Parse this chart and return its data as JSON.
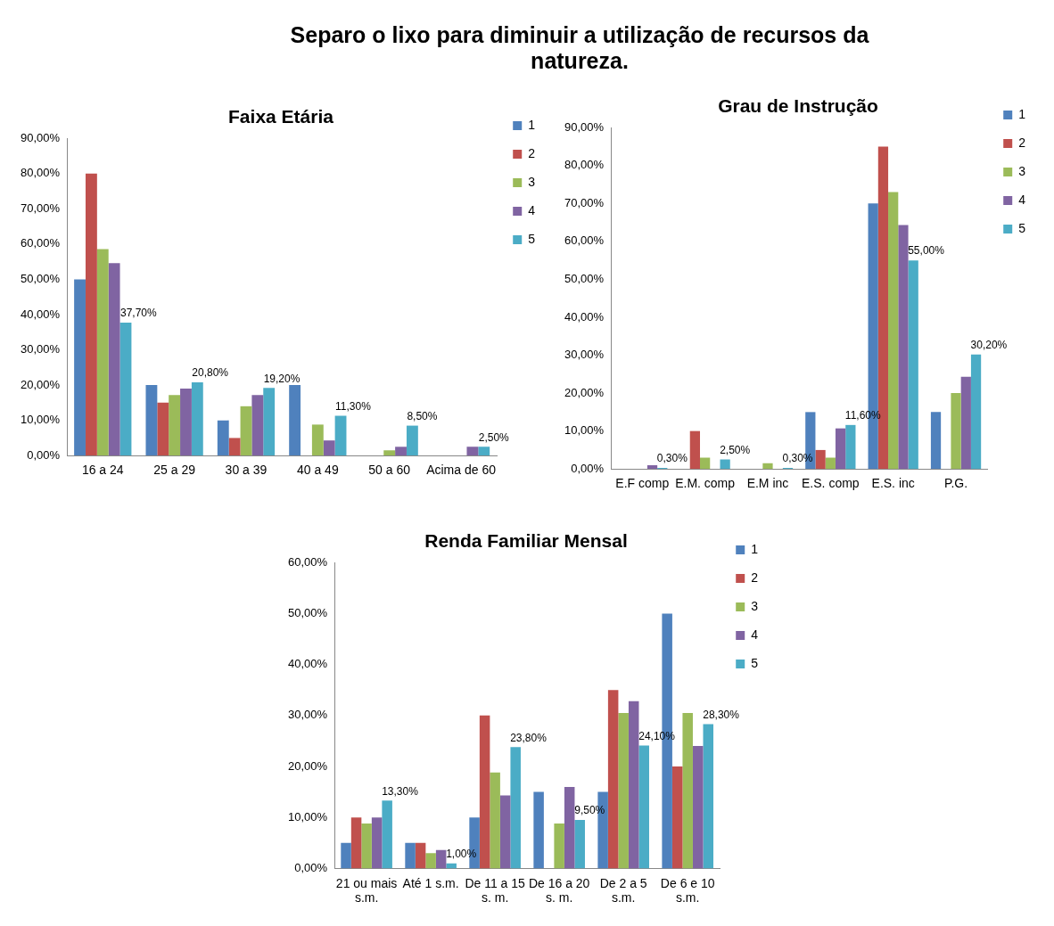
{
  "chart_data": [
    {
      "type": "other",
      "title": "Separo o lixo para diminuir a utilização de recursos da natureza."
    },
    {
      "type": "bar",
      "title": "Faixa Etária",
      "categories": [
        "16 a 24",
        "25 a 29",
        "30 a 39",
        "40 a 49",
        "50 a 60",
        "Acima de 60"
      ],
      "series": [
        {
          "name": "1",
          "color": "#4f81bd",
          "values": [
            50,
            20,
            10,
            20,
            0,
            0
          ]
        },
        {
          "name": "2",
          "color": "#c0504d",
          "values": [
            80,
            15,
            5,
            0,
            0,
            0
          ]
        },
        {
          "name": "3",
          "color": "#9bbb59",
          "values": [
            58.6,
            17.2,
            14,
            8.8,
            1.5,
            0
          ]
        },
        {
          "name": "4",
          "color": "#8064a2",
          "values": [
            54.6,
            19,
            17.2,
            4.3,
            2.5,
            2.5
          ]
        },
        {
          "name": "5",
          "color": "#4bacc6",
          "values": [
            37.7,
            20.8,
            19.2,
            11.3,
            8.5,
            2.5
          ],
          "value_labels": [
            "37,70%",
            "20,80%",
            "19,20%",
            "11,30%",
            "8,50%",
            "2,50%"
          ]
        }
      ],
      "ylim": [
        0,
        90
      ],
      "yticks": [
        {
          "value": 0,
          "label": "0,00%"
        },
        {
          "value": 10,
          "label": "10,00%"
        },
        {
          "value": 20,
          "label": "20,00%"
        },
        {
          "value": 30,
          "label": "30,00%"
        },
        {
          "value": 40,
          "label": "40,00%"
        },
        {
          "value": 50,
          "label": "50,00%"
        },
        {
          "value": 60,
          "label": "60,00%"
        },
        {
          "value": 70,
          "label": "70,00%"
        },
        {
          "value": 80,
          "label": "80,00%"
        },
        {
          "value": 90,
          "label": "90,00%"
        }
      ],
      "grid": false,
      "legend": "right"
    },
    {
      "type": "bar",
      "title": "Grau de Instrução",
      "categories": [
        "E.F comp",
        "E.M. comp",
        "E.M inc",
        "E.S. comp",
        "E.S. inc",
        "P.G."
      ],
      "series": [
        {
          "name": "1",
          "color": "#4f81bd",
          "values": [
            0,
            0,
            0,
            15,
            70,
            15
          ]
        },
        {
          "name": "2",
          "color": "#c0504d",
          "values": [
            0,
            10,
            0,
            5,
            85,
            0
          ]
        },
        {
          "name": "3",
          "color": "#9bbb59",
          "values": [
            0,
            3,
            1.5,
            3,
            73,
            20
          ]
        },
        {
          "name": "4",
          "color": "#8064a2",
          "values": [
            1,
            0,
            0,
            10.7,
            64.3,
            24.3
          ]
        },
        {
          "name": "5",
          "color": "#4bacc6",
          "values": [
            0.3,
            2.5,
            0.3,
            11.6,
            55,
            30.2
          ],
          "value_labels": [
            "0,30%",
            "2,50%",
            "0,30%",
            "11,60%",
            "55,00%",
            "30,20%"
          ]
        }
      ],
      "ylim": [
        0,
        90
      ],
      "yticks": [
        {
          "value": 0,
          "label": "0,00%"
        },
        {
          "value": 10,
          "label": "10,00%"
        },
        {
          "value": 20,
          "label": "20,00%"
        },
        {
          "value": 30,
          "label": "30,00%"
        },
        {
          "value": 40,
          "label": "40,00%"
        },
        {
          "value": 50,
          "label": "50,00%"
        },
        {
          "value": 60,
          "label": "60,00%"
        },
        {
          "value": 70,
          "label": "70,00%"
        },
        {
          "value": 80,
          "label": "80,00%"
        },
        {
          "value": 90,
          "label": "90,00%"
        }
      ],
      "grid": false,
      "legend": "right"
    },
    {
      "type": "bar",
      "title": "Renda Familiar Mensal",
      "categories": [
        "21 ou mais s.m.",
        "Até 1 s.m.",
        "De 11 a 15 s. m.",
        "De 16 a 20 s. m.",
        "De 2 a 5 s.m.",
        "De 6 e 10 s.m."
      ],
      "series": [
        {
          "name": "1",
          "color": "#4f81bd",
          "values": [
            5,
            5,
            10,
            15,
            15,
            50
          ]
        },
        {
          "name": "2",
          "color": "#c0504d",
          "values": [
            10,
            5,
            30,
            0,
            35,
            20
          ]
        },
        {
          "name": "3",
          "color": "#9bbb59",
          "values": [
            8.8,
            3,
            18.8,
            8.8,
            30.5,
            30.5
          ]
        },
        {
          "name": "4",
          "color": "#8064a2",
          "values": [
            10,
            3.6,
            14.3,
            16,
            32.8,
            24
          ]
        },
        {
          "name": "5",
          "color": "#4bacc6",
          "values": [
            13.3,
            1,
            23.8,
            9.5,
            24.1,
            28.3
          ],
          "value_labels": [
            "13,30%",
            "1,00%",
            "23,80%",
            "9,50%",
            "24,10%",
            "28,30%"
          ]
        }
      ],
      "ylim": [
        0,
        60
      ],
      "yticks": [
        {
          "value": 0,
          "label": "0,00%"
        },
        {
          "value": 10,
          "label": "10,00%"
        },
        {
          "value": 20,
          "label": "20,00%"
        },
        {
          "value": 30,
          "label": "30,00%"
        },
        {
          "value": 40,
          "label": "40,00%"
        },
        {
          "value": 50,
          "label": "50,00%"
        },
        {
          "value": 60,
          "label": "60,00%"
        }
      ],
      "grid": false,
      "legend": "right"
    }
  ]
}
